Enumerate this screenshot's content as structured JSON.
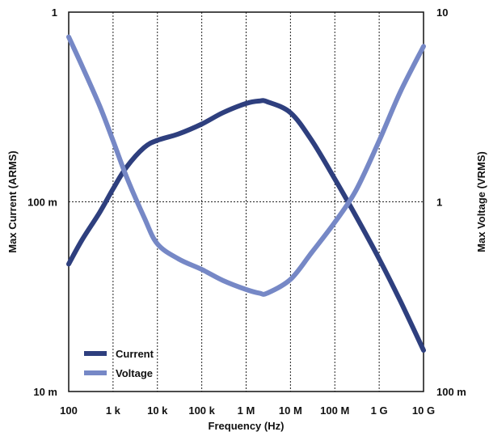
{
  "chart_data": {
    "type": "line",
    "title": "",
    "xlabel": "Frequency (Hz)",
    "ylabel_left": "Max Current (ARMS)",
    "ylabel_right": "Max Voltage (VRMS)",
    "x_scale": "log",
    "y_scale": "log",
    "xlim": [
      100,
      10000000000
    ],
    "ylim_left": [
      0.01,
      1
    ],
    "ylim_right": [
      0.1,
      10
    ],
    "grid": true,
    "legend_position": "bottom-left",
    "x_ticks": [
      {
        "value": 100,
        "label": "100"
      },
      {
        "value": 1000,
        "label": "1 k"
      },
      {
        "value": 10000,
        "label": "10 k"
      },
      {
        "value": 100000,
        "label": "100 k"
      },
      {
        "value": 1000000,
        "label": "1 M"
      },
      {
        "value": 10000000,
        "label": "10 M"
      },
      {
        "value": 100000000,
        "label": "100 M"
      },
      {
        "value": 1000000000,
        "label": "1 G"
      },
      {
        "value": 10000000000,
        "label": "10 G"
      }
    ],
    "y_ticks_left": [
      {
        "value": 0.01,
        "label": "10 m"
      },
      {
        "value": 0.1,
        "label": "100 m"
      },
      {
        "value": 1,
        "label": "1"
      }
    ],
    "y_ticks_right": [
      {
        "value": 0.1,
        "label": "100 m"
      },
      {
        "value": 1,
        "label": "1"
      },
      {
        "value": 10,
        "label": "10"
      }
    ],
    "series": [
      {
        "name": "Current",
        "axis": "left",
        "color": "#2e3f7e",
        "x": [
          100,
          200,
          500,
          1000,
          2000,
          5000,
          10000,
          30000,
          100000,
          300000,
          1000000,
          2000000,
          3000000,
          10000000,
          30000000,
          100000000,
          300000000,
          1000000000,
          3000000000,
          10000000000
        ],
        "y": [
          0.047,
          0.063,
          0.088,
          0.117,
          0.152,
          0.193,
          0.211,
          0.228,
          0.257,
          0.295,
          0.33,
          0.34,
          0.337,
          0.295,
          0.211,
          0.132,
          0.084,
          0.05,
          0.03,
          0.0165
        ]
      },
      {
        "name": "Voltage",
        "axis": "right",
        "color": "#7688c6",
        "x": [
          100,
          200,
          500,
          1000,
          2000,
          5000,
          10000,
          30000,
          100000,
          300000,
          1000000,
          2000000,
          3000000,
          10000000,
          30000000,
          100000000,
          300000000,
          1000000000,
          3000000000,
          10000000000
        ],
        "y": [
          7.4,
          5.2,
          3.2,
          2.1,
          1.36,
          0.83,
          0.6,
          0.5,
          0.44,
          0.385,
          0.345,
          0.33,
          0.33,
          0.39,
          0.54,
          0.78,
          1.15,
          2.1,
          3.8,
          6.6
        ]
      }
    ]
  }
}
